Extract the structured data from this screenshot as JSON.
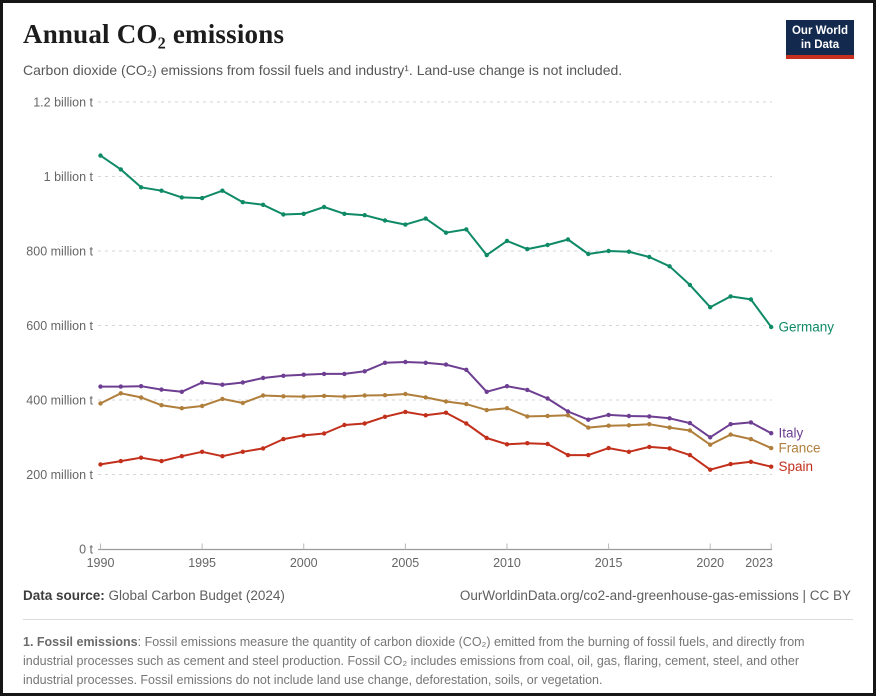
{
  "header": {
    "title": "Annual CO₂ emissions",
    "subtitle": "Carbon dioxide (CO₂) emissions from fossil fuels and industry¹. Land-use change is not included.",
    "logo_line1": "Our World",
    "logo_line2": "in Data",
    "logo_bg_color": "#13294E",
    "logo_accent_color": "#C5301F"
  },
  "chart_data": {
    "type": "line",
    "title": "Annual CO₂ emissions",
    "xlabel": "",
    "ylabel": "",
    "y_unit": "million t",
    "xlim": [
      1990,
      2023
    ],
    "ylim": [
      0,
      1200
    ],
    "grid": "dashed horizontal gridlines",
    "legend_position": "right end-of-line labels",
    "x": [
      1990,
      1991,
      1992,
      1993,
      1994,
      1995,
      1996,
      1997,
      1998,
      1999,
      2000,
      2001,
      2002,
      2003,
      2004,
      2005,
      2006,
      2007,
      2008,
      2009,
      2010,
      2011,
      2012,
      2013,
      2014,
      2015,
      2016,
      2017,
      2018,
      2019,
      2020,
      2021,
      2022,
      2023
    ],
    "x_ticks": [
      1990,
      1995,
      2000,
      2005,
      2010,
      2015,
      2020,
      2023
    ],
    "y_ticks": [
      {
        "v": 0,
        "label": "0 t"
      },
      {
        "v": 200,
        "label": "200 million t"
      },
      {
        "v": 400,
        "label": "400 million t"
      },
      {
        "v": 600,
        "label": "600 million t"
      },
      {
        "v": 800,
        "label": "800 million t"
      },
      {
        "v": 1000,
        "label": "1 billion t"
      },
      {
        "v": 1200,
        "label": "1.2 billion t"
      }
    ],
    "series": [
      {
        "name": "Germany",
        "color": "#0E8A66",
        "values": [
          1056,
          1019,
          971,
          962,
          944,
          942,
          962,
          931,
          924,
          898,
          900,
          918,
          900,
          896,
          882,
          871,
          887,
          849,
          858,
          789,
          827,
          805,
          816,
          831,
          792,
          800,
          798,
          784,
          759,
          709,
          649,
          678,
          670,
          596
        ]
      },
      {
        "name": "Italy",
        "color": "#6D3E91",
        "values": [
          436,
          436,
          437,
          428,
          422,
          447,
          441,
          447,
          459,
          465,
          468,
          470,
          470,
          477,
          500,
          502,
          500,
          495,
          481,
          422,
          437,
          427,
          404,
          369,
          347,
          360,
          357,
          356,
          351,
          338,
          300,
          335,
          340,
          311
        ]
      },
      {
        "name": "France",
        "color": "#B07F3C",
        "values": [
          391,
          418,
          407,
          386,
          378,
          384,
          403,
          392,
          412,
          410,
          409,
          411,
          409,
          412,
          413,
          416,
          407,
          396,
          389,
          373,
          378,
          356,
          357,
          359,
          326,
          331,
          332,
          335,
          326,
          318,
          280,
          307,
          295,
          271
        ]
      },
      {
        "name": "Spain",
        "color": "#C2301C",
        "values": [
          227,
          236,
          245,
          236,
          249,
          261,
          249,
          261,
          270,
          295,
          305,
          310,
          333,
          337,
          355,
          368,
          359,
          366,
          337,
          298,
          281,
          284,
          282,
          252,
          252,
          271,
          261,
          274,
          270,
          252,
          213,
          228,
          234,
          221
        ]
      }
    ],
    "axis_color": "#9a9a9a",
    "grid_color": "#d6d6d6",
    "tick_label_color": "#666666"
  },
  "footer": {
    "source_label": "Data source:",
    "source_value": "Global Carbon Budget (2024)",
    "link_text": "OurWorldinData.org/co2-and-greenhouse-gas-emissions | CC BY",
    "note_lead": "1. Fossil emissions",
    "note_text": ": Fossil emissions measure the quantity of carbon dioxide (CO₂) emitted from the burning of fossil fuels, and directly from industrial processes such as cement and steel production. Fossil CO₂ includes emissions from coal, oil, gas, flaring, cement, steel, and other industrial processes. Fossil emissions do not include land use change, deforestation, soils, or vegetation."
  }
}
